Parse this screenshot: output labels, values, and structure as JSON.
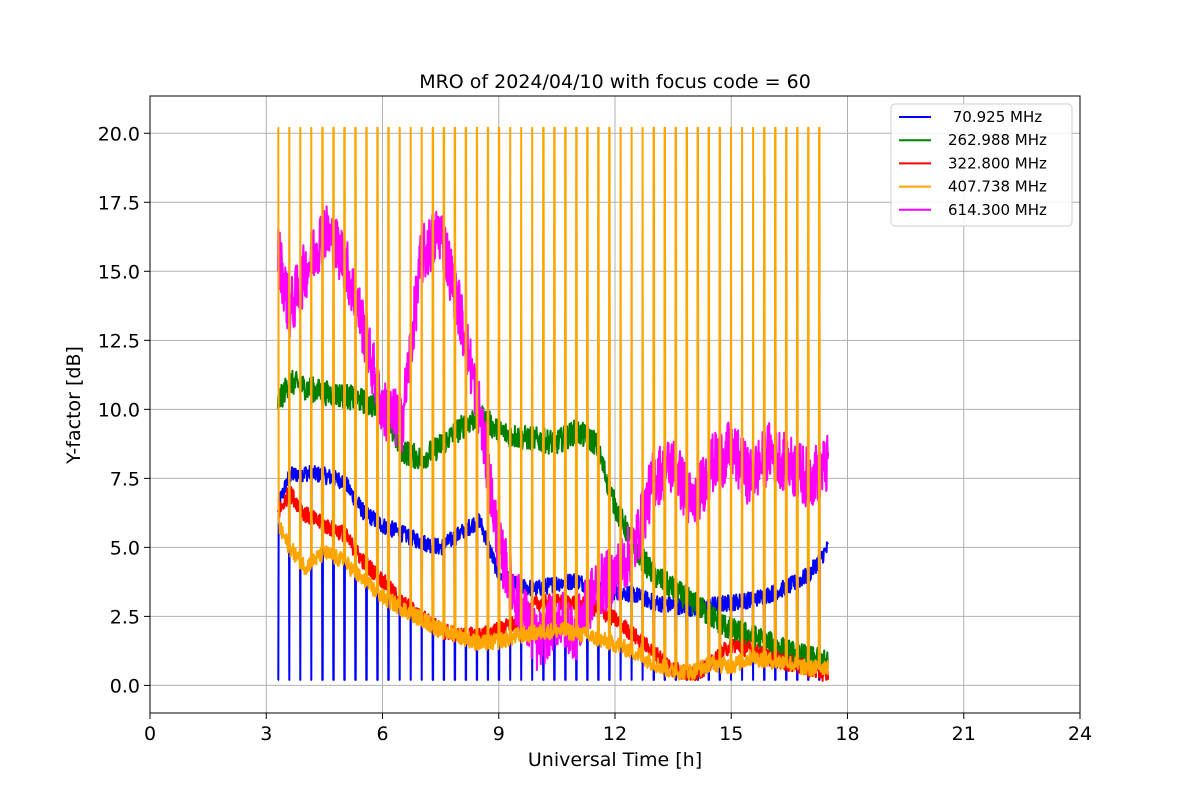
{
  "chart_data": {
    "type": "line",
    "title": "MRO of 2024/04/10 with focus code = 60",
    "xlabel": "Universal Time [h]",
    "ylabel": "Y-factor [dB]",
    "xlim": [
      0,
      24
    ],
    "ylim": [
      -1.0,
      21.35
    ],
    "xticks": [
      0,
      3,
      6,
      9,
      12,
      15,
      18,
      21,
      24
    ],
    "xtick_labels": [
      "0",
      "3",
      "6",
      "9",
      "12",
      "15",
      "18",
      "21",
      "24"
    ],
    "yticks": [
      0,
      2.5,
      5,
      7.5,
      10,
      12.5,
      15,
      17.5,
      20
    ],
    "ytick_labels": [
      "0.0",
      "2.5",
      "5.0",
      "7.5",
      "10.0",
      "12.5",
      "15.0",
      "17.5",
      "20.0"
    ],
    "grid": true,
    "legend_position": "top-right",
    "series": [
      {
        "name": " 70.925 MHz",
        "color": "#0000ff",
        "x": [
          3.3,
          3.6,
          4.0,
          4.5,
          5.0,
          5.5,
          6.0,
          6.5,
          7.0,
          7.5,
          8.0,
          8.5,
          9.0,
          9.5,
          10.0,
          10.5,
          11.0,
          11.5,
          12.0,
          12.5,
          13.0,
          13.5,
          14.0,
          14.5,
          15.0,
          15.5,
          16.0,
          16.5,
          17.0,
          17.5
        ],
        "y": [
          6.5,
          7.6,
          7.7,
          7.6,
          7.4,
          6.3,
          5.8,
          5.5,
          5.2,
          5.0,
          5.5,
          6.0,
          4.0,
          3.6,
          3.5,
          3.7,
          3.8,
          3.5,
          3.4,
          3.3,
          3.0,
          2.9,
          2.8,
          2.9,
          3.0,
          3.1,
          3.3,
          3.6,
          4.0,
          5.0
        ],
        "spikes_to": 0.2
      },
      {
        "name": "262.988 MHz",
        "color": "#008000",
        "x": [
          3.3,
          3.6,
          4.0,
          4.5,
          5.0,
          5.5,
          6.0,
          6.5,
          7.0,
          7.5,
          8.0,
          8.5,
          9.0,
          9.5,
          10.0,
          10.5,
          11.0,
          11.5,
          12.0,
          12.5,
          13.0,
          13.5,
          14.0,
          14.5,
          15.0,
          15.5,
          16.0,
          16.5,
          17.0,
          17.5
        ],
        "y": [
          10.2,
          11.0,
          10.8,
          10.6,
          10.5,
          10.3,
          10.0,
          8.5,
          8.2,
          8.7,
          9.3,
          9.8,
          9.2,
          9.0,
          8.9,
          8.8,
          9.2,
          8.8,
          6.5,
          5.0,
          4.0,
          3.5,
          3.0,
          2.5,
          2.0,
          1.8,
          1.5,
          1.2,
          1.0,
          0.8
        ]
      },
      {
        "name": "322.800 MHz",
        "color": "#ff0000",
        "x": [
          3.3,
          3.6,
          4.0,
          4.5,
          5.0,
          5.5,
          6.0,
          6.5,
          7.0,
          7.5,
          8.0,
          8.5,
          9.0,
          9.5,
          10.0,
          10.5,
          11.0,
          11.5,
          12.0,
          12.5,
          13.0,
          13.5,
          14.0,
          14.5,
          15.0,
          15.5,
          16.0,
          16.5,
          17.0,
          17.5
        ],
        "y": [
          6.2,
          7.0,
          6.2,
          5.8,
          5.5,
          4.5,
          3.8,
          3.0,
          2.5,
          2.0,
          1.8,
          1.8,
          2.0,
          2.3,
          3.0,
          3.0,
          3.0,
          2.8,
          2.4,
          1.8,
          1.2,
          0.6,
          0.4,
          0.8,
          1.5,
          1.3,
          1.0,
          0.8,
          0.6,
          0.4
        ]
      },
      {
        "name": "407.738 MHz",
        "color": "#ffa500",
        "x": [
          3.3,
          3.6,
          4.0,
          4.5,
          5.0,
          5.5,
          6.0,
          6.5,
          7.0,
          7.5,
          8.0,
          8.5,
          9.0,
          9.5,
          10.0,
          10.5,
          11.0,
          11.5,
          12.0,
          12.5,
          13.0,
          13.5,
          14.0,
          14.5,
          15.0,
          15.5,
          16.0,
          16.5,
          17.0,
          17.5
        ],
        "y": [
          5.8,
          5.0,
          4.3,
          4.8,
          4.5,
          3.8,
          3.2,
          2.8,
          2.4,
          2.0,
          1.8,
          1.5,
          1.6,
          1.8,
          1.9,
          2.0,
          1.9,
          1.7,
          1.5,
          1.2,
          0.8,
          0.5,
          0.5,
          0.8,
          0.7,
          1.0,
          0.9,
          0.8,
          0.6,
          0.7
        ],
        "spikes_to": 20.2
      },
      {
        "name": "614.300 MHz",
        "color": "#ff00ff",
        "x": [
          3.3,
          3.6,
          4.0,
          4.5,
          5.0,
          5.5,
          6.0,
          6.5,
          7.0,
          7.5,
          8.0,
          8.5,
          9.0,
          9.5,
          10.0,
          10.5,
          11.0,
          11.5,
          12.0,
          12.5,
          13.0,
          13.5,
          14.0,
          14.5,
          15.0,
          15.5,
          16.0,
          16.5,
          17.0,
          17.5
        ],
        "y": [
          15.8,
          13.5,
          15.0,
          16.5,
          15.5,
          13.0,
          10.0,
          9.5,
          15.5,
          16.5,
          13.5,
          10.0,
          5.0,
          3.0,
          1.5,
          2.5,
          2.0,
          3.5,
          4.0,
          5.0,
          7.5,
          8.0,
          6.5,
          8.0,
          8.5,
          7.5,
          8.5,
          8.0,
          7.5,
          8.0
        ]
      }
    ]
  }
}
